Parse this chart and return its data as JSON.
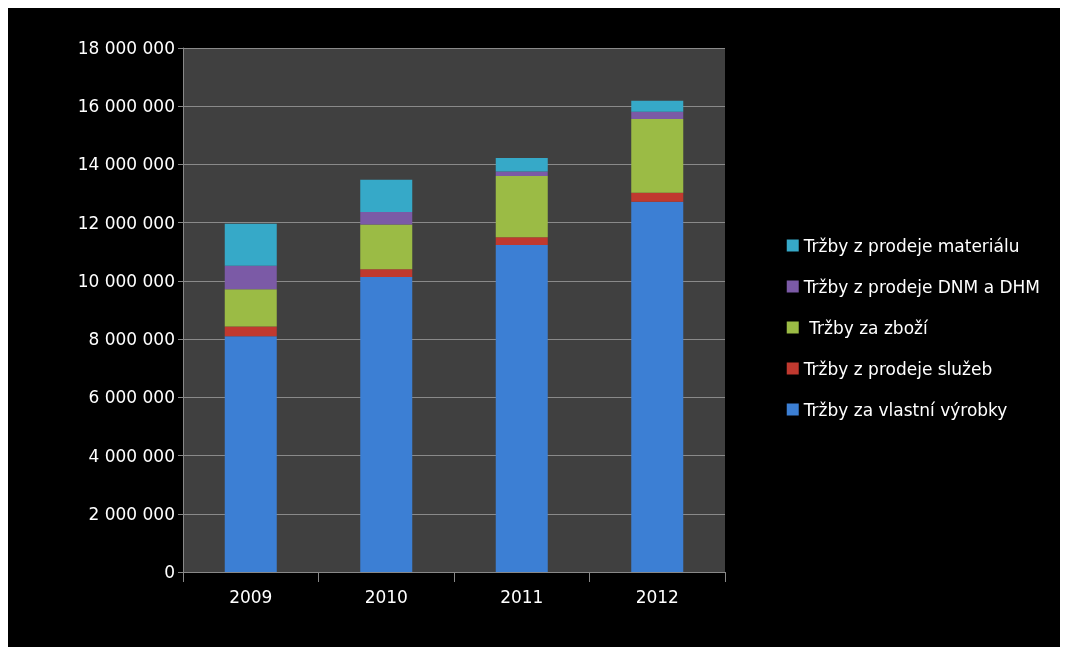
{
  "chart_data": {
    "type": "bar",
    "stacked": true,
    "categories": [
      "2009",
      "2010",
      "2011",
      "2012"
    ],
    "series": [
      {
        "name": "Tržby za vlastní výrobky",
        "color": "#3c7fd4",
        "values": [
          8100000,
          10130000,
          11230000,
          12720000
        ]
      },
      {
        "name": "Tržby z prodeje služeb",
        "color": "#c0392f",
        "values": [
          330000,
          270000,
          270000,
          310000
        ]
      },
      {
        "name": " Tržby za zboží",
        "color": "#9bbb45",
        "values": [
          1280000,
          1540000,
          2100000,
          2530000
        ]
      },
      {
        "name": "Tržby z prodeje DNM a DHM",
        "color": "#7b5aa6",
        "values": [
          810000,
          430000,
          160000,
          250000
        ]
      },
      {
        "name": "Tržby z prodeje materiálu",
        "color": "#36a9c8",
        "values": [
          1440000,
          1100000,
          460000,
          380000
        ]
      }
    ],
    "ylim": [
      0,
      18000000
    ],
    "yticks": [
      0,
      {
        "value": 2000000,
        "label": "2 000 000"
      },
      {
        "value": 4000000,
        "label": "4 000 000"
      },
      {
        "value": 6000000,
        "label": "6 000 000"
      },
      {
        "value": 8000000,
        "label": "8 000 000"
      },
      {
        "value": 10000000,
        "label": "10 000 000"
      },
      {
        "value": 12000000,
        "label": "12 000 000"
      },
      {
        "value": 14000000,
        "label": "14 000 000"
      },
      {
        "value": 16000000,
        "label": "16 000 000"
      },
      {
        "value": 18000000,
        "label": "18 000 000"
      }
    ],
    "grid": "y",
    "legend": "right"
  }
}
